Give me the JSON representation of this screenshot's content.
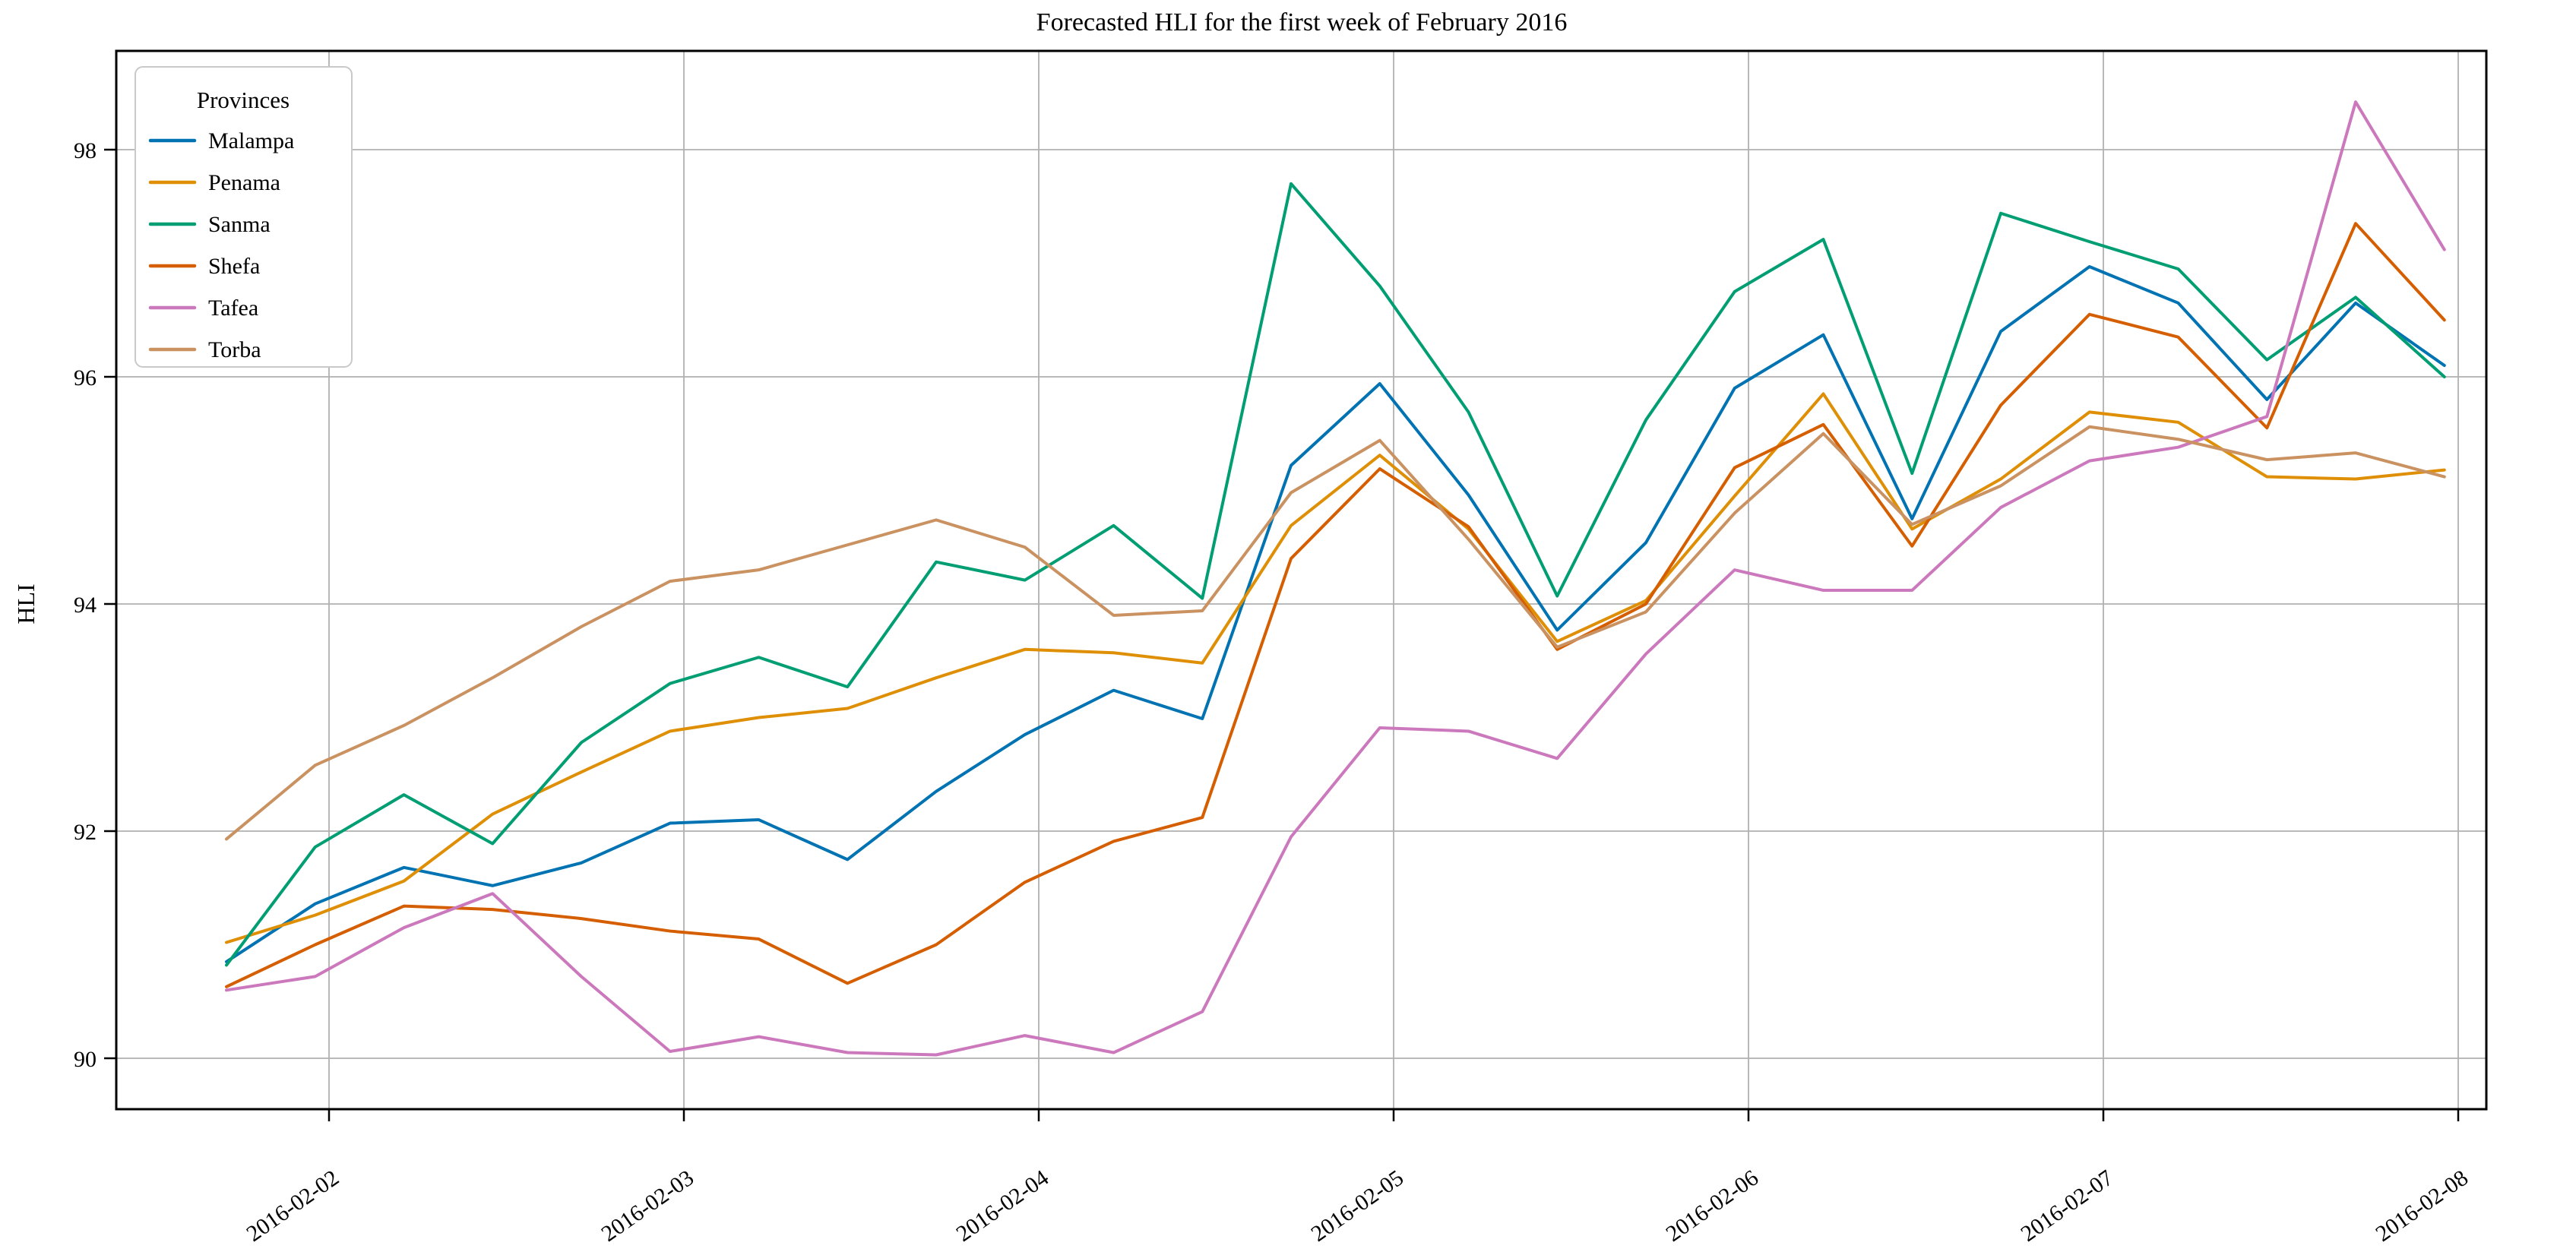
{
  "page": {
    "background": "#ffffff"
  },
  "colors": {
    "grid": "#b0b0b0",
    "spine": "#000000",
    "text": "#000000",
    "legend_border": "#c9c9c9",
    "legend_bg": "#ffffff"
  },
  "chart_data": {
    "type": "line",
    "title": "Forecasted HLI for the first week of February 2016",
    "xlabel": "",
    "ylabel": "HLI",
    "grid": true,
    "legend_title": "Provinces",
    "legend_position": "upper-left",
    "ylim": [
      89.6,
      98.9
    ],
    "yticks": [
      90,
      92,
      94,
      96,
      98
    ],
    "xtick_labels": [
      "2016-02-02",
      "2016-02-03",
      "2016-02-04",
      "2016-02-05",
      "2016-02-06",
      "2016-02-07",
      "2016-02-08"
    ],
    "x": [
      "2016-02-01 17:00",
      "2016-02-01 23:00",
      "2016-02-02 05:00",
      "2016-02-02 11:00",
      "2016-02-02 17:00",
      "2016-02-02 23:00",
      "2016-02-03 05:00",
      "2016-02-03 11:00",
      "2016-02-03 17:00",
      "2016-02-03 23:00",
      "2016-02-04 05:00",
      "2016-02-04 11:00",
      "2016-02-04 17:00",
      "2016-02-04 23:00",
      "2016-02-05 05:00",
      "2016-02-05 11:00",
      "2016-02-05 17:00",
      "2016-02-05 23:00",
      "2016-02-06 05:00",
      "2016-02-06 11:00",
      "2016-02-06 17:00",
      "2016-02-06 23:00",
      "2016-02-07 05:00",
      "2016-02-07 11:00",
      "2016-02-07 17:00",
      "2016-02-07 23:00"
    ],
    "series": [
      {
        "name": "Malampa",
        "color": "#0173b2",
        "values": [
          90.85,
          91.36,
          91.68,
          91.52,
          91.72,
          92.07,
          92.1,
          91.75,
          92.35,
          92.85,
          93.24,
          92.99,
          95.22,
          95.94,
          94.96,
          93.77,
          94.54,
          95.9,
          96.37,
          94.75,
          96.4,
          96.97,
          96.65,
          95.8,
          96.65,
          96.1
        ]
      },
      {
        "name": "Penama",
        "color": "#de8f05",
        "values": [
          91.02,
          91.26,
          91.56,
          92.15,
          92.52,
          92.88,
          93.0,
          93.08,
          93.35,
          93.6,
          93.57,
          93.48,
          94.69,
          95.31,
          94.66,
          93.67,
          94.03,
          94.95,
          95.85,
          94.66,
          95.1,
          95.69,
          95.6,
          95.12,
          95.1,
          95.18
        ]
      },
      {
        "name": "Sanma",
        "color": "#029e73",
        "values": [
          90.82,
          91.86,
          92.32,
          91.89,
          92.78,
          93.3,
          93.53,
          93.27,
          94.37,
          94.21,
          94.69,
          94.05,
          97.7,
          96.8,
          95.69,
          94.07,
          95.62,
          96.75,
          97.21,
          95.15,
          97.44,
          97.19,
          96.95,
          96.15,
          96.7,
          96.0
        ]
      },
      {
        "name": "Shefa",
        "color": "#d55e00",
        "values": [
          90.63,
          91.0,
          91.34,
          91.31,
          91.23,
          91.12,
          91.05,
          90.66,
          91.0,
          91.55,
          91.91,
          92.12,
          94.4,
          95.19,
          94.68,
          93.6,
          94.0,
          95.2,
          95.58,
          94.51,
          95.75,
          96.55,
          96.35,
          95.55,
          97.35,
          96.5
        ]
      },
      {
        "name": "Tafea",
        "color": "#cc78bc",
        "values": [
          90.6,
          90.72,
          91.15,
          91.45,
          90.72,
          90.06,
          90.19,
          90.05,
          90.03,
          90.2,
          90.05,
          90.41,
          91.95,
          92.91,
          92.88,
          92.64,
          93.56,
          94.3,
          94.12,
          94.12,
          94.85,
          95.26,
          95.38,
          95.65,
          98.42,
          97.12
        ]
      },
      {
        "name": "Torba",
        "color": "#ca9161",
        "values": [
          91.93,
          92.58,
          92.93,
          93.35,
          93.8,
          94.2,
          94.3,
          94.52,
          94.74,
          94.5,
          93.9,
          93.94,
          94.98,
          95.44,
          94.57,
          93.62,
          93.93,
          94.8,
          95.5,
          94.7,
          95.04,
          95.56,
          95.45,
          95.27,
          95.33,
          95.12
        ]
      }
    ]
  }
}
